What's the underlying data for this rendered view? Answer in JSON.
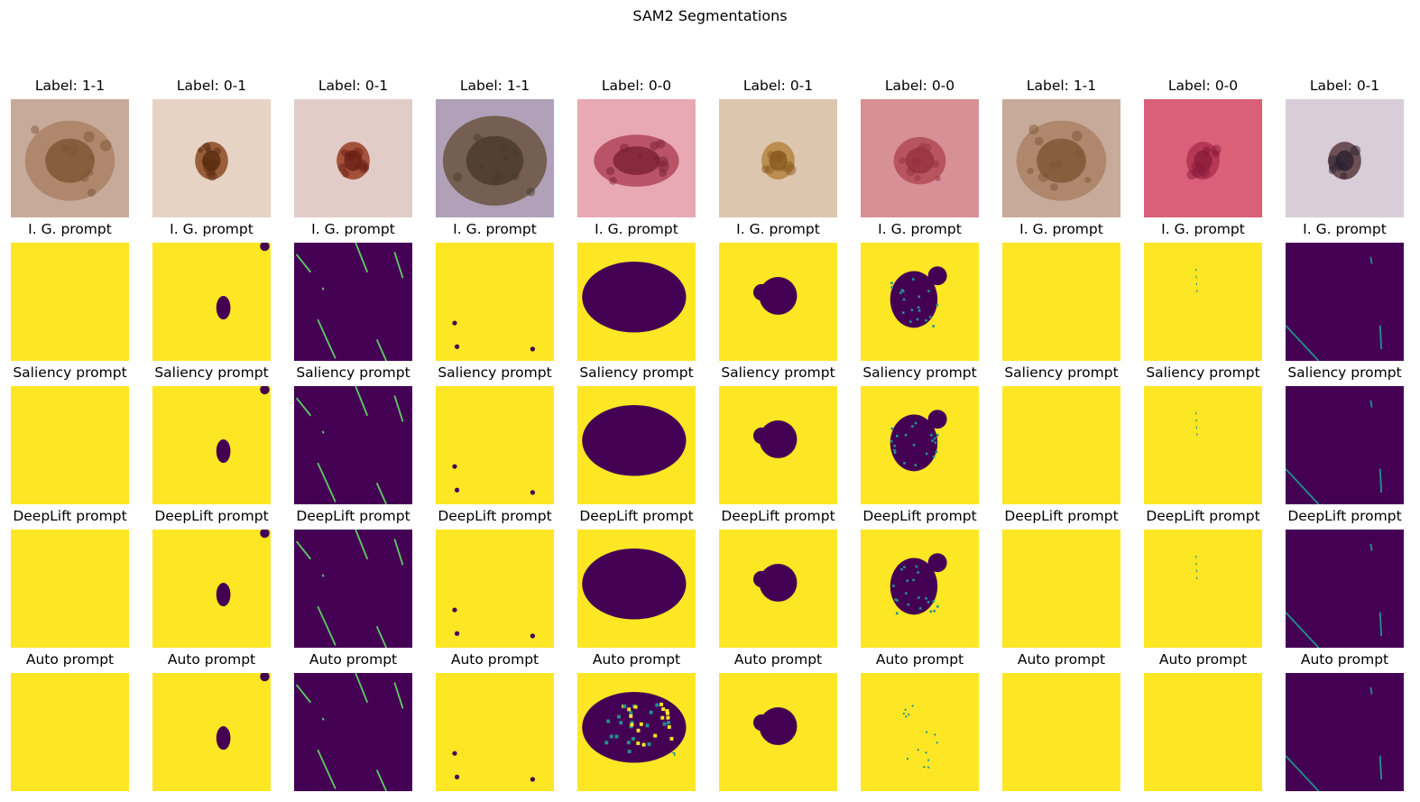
{
  "figure": {
    "title": "SAM2 Segmentations"
  },
  "colors": {
    "mask_foreground": "#fde725",
    "mask_background": "#440154",
    "mask_edge": "#21918c"
  },
  "columns": [
    {
      "label": "Label: 1-1",
      "photo": {
        "bg": "#c8aa9b",
        "lesion": "#9a6a45",
        "lesion2": "#7d5535",
        "shape": "diffuse"
      }
    },
    {
      "label": "Label: 0-1",
      "photo": {
        "bg": "#e6d3c4",
        "lesion": "#8a4a22",
        "lesion2": "#5a2a10",
        "shape": "small"
      }
    },
    {
      "label": "Label: 0-1",
      "photo": {
        "bg": "#e2ccc8",
        "lesion": "#9a3c24",
        "lesion2": "#6a2014",
        "shape": "small"
      }
    },
    {
      "label": "Label: 1-1",
      "photo": {
        "bg": "#b0a0b8",
        "lesion": "#6a5440",
        "lesion2": "#4a3a2a",
        "shape": "big"
      }
    },
    {
      "label": "Label: 0-0",
      "photo": {
        "bg": "#e8a8b4",
        "lesion": "#b0455a",
        "lesion2": "#7a1f30",
        "shape": "oval"
      }
    },
    {
      "label": "Label: 0-1",
      "photo": {
        "bg": "#dcc6ae",
        "lesion": "#b5843f",
        "lesion2": "#8a5a20",
        "shape": "small"
      }
    },
    {
      "label": "Label: 0-0",
      "photo": {
        "bg": "#d69096",
        "lesion": "#b24a54",
        "lesion2": "#962f3e",
        "shape": "medium"
      }
    },
    {
      "label": "Label: 1-1",
      "photo": {
        "bg": "#c8aa9b",
        "lesion": "#9a6a45",
        "lesion2": "#7d5535",
        "shape": "diffuse"
      }
    },
    {
      "label": "Label: 0-0",
      "photo": {
        "bg": "#d96078",
        "lesion": "#b03050",
        "lesion2": "#8a1c3a",
        "shape": "small"
      }
    },
    {
      "label": "Label: 0-1",
      "photo": {
        "bg": "#d8cdd8",
        "lesion": "#5a3a40",
        "lesion2": "#2a2030",
        "shape": "small"
      }
    }
  ],
  "rows": [
    {
      "prompt": "I. G. prompt"
    },
    {
      "prompt": "Saliency prompt"
    },
    {
      "prompt": "DeepLift prompt"
    },
    {
      "prompt": "Auto prompt"
    }
  ],
  "masks": [
    [
      "yellow",
      "small-blob",
      "hairs",
      "specks",
      "big-blob",
      "round-blob",
      "medium-blob",
      "yellow",
      "faint",
      "dark-hairs"
    ],
    [
      "yellow",
      "small-blob",
      "hairs",
      "specks",
      "big-blob",
      "round-blob",
      "medium-blob",
      "yellow",
      "faint",
      "dark-hairs"
    ],
    [
      "yellow",
      "small-blob",
      "hairs",
      "specks",
      "big-blob",
      "round-blob",
      "medium-blob",
      "yellow",
      "faint",
      "dark-hairs"
    ],
    [
      "yellow",
      "small-blob",
      "hairs",
      "specks",
      "noisy-blob",
      "round-blob",
      "sparse",
      "yellow",
      "yellow",
      "dark-hairs"
    ]
  ]
}
